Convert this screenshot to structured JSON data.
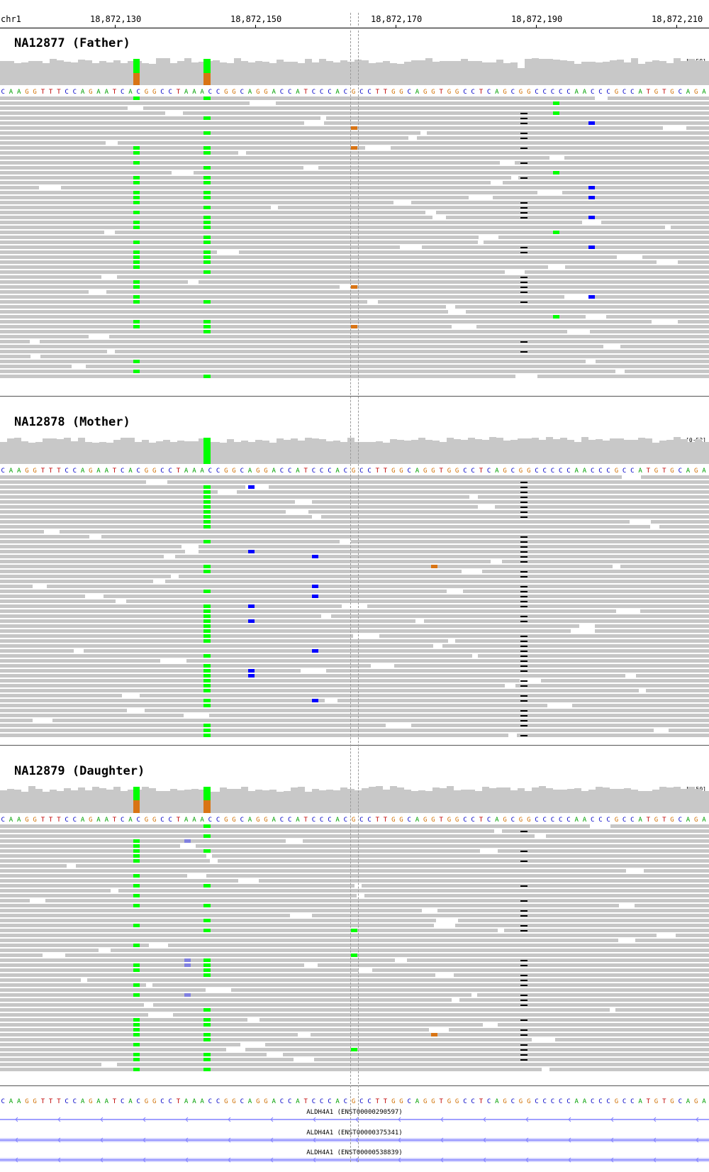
{
  "chromosome": "chr1",
  "ruler": {
    "labels": [
      "18,872,130",
      "18,872,150",
      "18,872,170",
      "18,872,190",
      "18,872,210"
    ]
  },
  "reference_sequence": "CAAGGTTTCCAGAATCACGGCCTAAACCGGCAGGACCATCCCACGCCTTGGCAGGTGGCCTCAGCGGCCCCCAACCCGCCATGTGCAGA",
  "base_colors": {
    "A": "#00a000",
    "C": "#0000c8",
    "G": "#d17105",
    "T": "#c00000"
  },
  "colors": {
    "coverage": "#c8c8c8",
    "read": "#c6c6c6",
    "allele_green": "#00ff00",
    "allele_orange": "#d97414",
    "guide": "#999999",
    "transcript": "#8080ff"
  },
  "samples": [
    {
      "title": "NA12877 (Father)",
      "scale": "[0-58]"
    },
    {
      "title": "NA12878 (Mother)",
      "scale": "[0-52]"
    },
    {
      "title": "NA12879 (Daughter)",
      "scale": "[0-50]"
    }
  ],
  "transcripts": [
    {
      "label": "ALDH4A1 (ENST00000290597)"
    },
    {
      "label": "ALDH4A1 (ENST00000375341)"
    },
    {
      "label": "ALDH4A1 (ENST00000538839)"
    }
  ]
}
